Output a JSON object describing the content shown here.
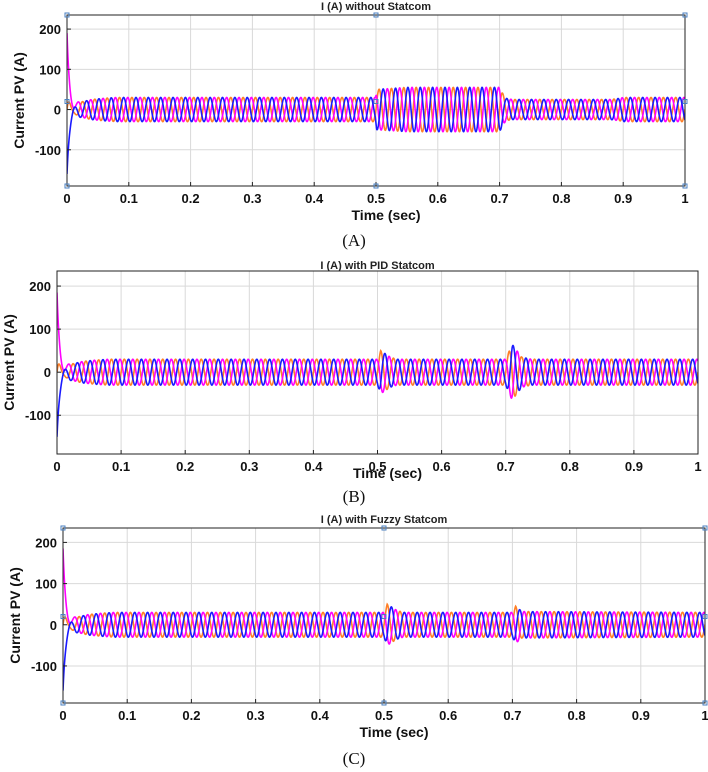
{
  "figure": {
    "colors": {
      "phase_a": "#ff7f27",
      "phase_b": "#ff00ff",
      "phase_c": "#1a1aff",
      "grid": "#d9d9d9",
      "marker": "#4a7fc0"
    },
    "icons": [
      "square-marker-icon"
    ]
  },
  "chart_data": [
    {
      "type": "line",
      "title": "I (A) without Statcom",
      "xlabel": "Time (sec)",
      "ylabel": "Current PV (A)",
      "caption": "(A)",
      "xlim": [
        0,
        1
      ],
      "ylim": [
        -190,
        235
      ],
      "xticks": [
        0,
        0.1,
        0.2,
        0.3,
        0.4,
        0.5,
        0.6,
        0.7,
        0.8,
        0.9,
        1
      ],
      "xtick_labels": [
        "0",
        "0.1",
        "0.2",
        "0.3",
        "0.4",
        "0.5",
        "0.6",
        "0.7",
        "0.8",
        "0.9",
        "1"
      ],
      "yticks": [
        -100,
        0,
        100,
        200
      ],
      "ytick_labels": [
        "-100",
        "0",
        "100",
        "200"
      ],
      "grid": true,
      "frequency_hz": 50,
      "phases": [
        "phase_a",
        "phase_b",
        "phase_c"
      ],
      "envelope": {
        "t": [
          0,
          0.005,
          0.01,
          0.02,
          0.04,
          0.06,
          0.08,
          0.1,
          0.499,
          0.501,
          0.55,
          0.7,
          0.705,
          0.71,
          0.72,
          0.88,
          0.895,
          0.9,
          1.0
        ],
        "amplitude": [
          0,
          8,
          12,
          18,
          25,
          28,
          30,
          30,
          30,
          50,
          55,
          55,
          40,
          28,
          25,
          25,
          28,
          30,
          30
        ]
      },
      "transient_peak": {
        "t": 0.0,
        "value": 210
      },
      "transient_min": {
        "t": 0.0,
        "value": -180
      },
      "end_markers": [
        0,
        0.5,
        1
      ]
    },
    {
      "type": "line",
      "title": "I (A) with PID Statcom",
      "xlabel": "Time (sec)",
      "ylabel": "Current PV (A)",
      "caption": "(B)",
      "xlim": [
        0,
        1
      ],
      "ylim": [
        -190,
        235
      ],
      "xticks": [
        0,
        0.1,
        0.2,
        0.3,
        0.4,
        0.5,
        0.6,
        0.7,
        0.8,
        0.9,
        1
      ],
      "xtick_labels": [
        "0",
        "0.1",
        "0.2",
        "0.3",
        "0.4",
        "0.5",
        "0.6",
        "0.7",
        "0.8",
        "0.9",
        "1"
      ],
      "yticks": [
        -100,
        0,
        100,
        200
      ],
      "ytick_labels": [
        "-100",
        "0",
        "100",
        "200"
      ],
      "grid": true,
      "frequency_hz": 50,
      "phases": [
        "phase_a",
        "phase_b",
        "phase_c"
      ],
      "envelope": {
        "t": [
          0,
          0.005,
          0.01,
          0.02,
          0.04,
          0.06,
          0.08,
          0.1,
          0.5,
          0.505,
          0.52,
          0.53,
          0.7,
          0.71,
          0.725,
          0.74,
          1.0
        ],
        "amplitude": [
          0,
          8,
          12,
          18,
          25,
          28,
          30,
          30,
          30,
          50,
          35,
          30,
          30,
          65,
          35,
          30,
          30
        ]
      },
      "transient_peak": {
        "t": 0.0,
        "value": 205
      },
      "transient_min": {
        "t": 0.0,
        "value": -170
      },
      "end_markers": []
    },
    {
      "type": "line",
      "title": "I (A) with Fuzzy Statcom",
      "xlabel": "Time (sec)",
      "ylabel": "Current PV (A)",
      "caption": "(C)",
      "xlim": [
        0,
        1
      ],
      "ylim": [
        -190,
        235
      ],
      "xticks": [
        0,
        0.1,
        0.2,
        0.3,
        0.4,
        0.5,
        0.6,
        0.7,
        0.8,
        0.9,
        1
      ],
      "xtick_labels": [
        "0",
        "0.1",
        "0.2",
        "0.3",
        "0.4",
        "0.5",
        "0.6",
        "0.7",
        "0.8",
        "0.9",
        "1"
      ],
      "yticks": [
        -100,
        0,
        100,
        200
      ],
      "ytick_labels": [
        "-100",
        "0",
        "100",
        "200"
      ],
      "grid": true,
      "frequency_hz": 50,
      "phases": [
        "phase_a",
        "phase_b",
        "phase_c"
      ],
      "envelope": {
        "t": [
          0,
          0.005,
          0.01,
          0.02,
          0.04,
          0.06,
          0.08,
          0.1,
          0.5,
          0.505,
          0.52,
          0.53,
          0.7,
          0.705,
          0.715,
          1.0
        ],
        "amplitude": [
          0,
          8,
          12,
          18,
          25,
          28,
          30,
          30,
          30,
          50,
          35,
          30,
          30,
          45,
          32,
          30
        ]
      },
      "transient_peak": {
        "t": 0.0,
        "value": 205
      },
      "transient_min": {
        "t": 0.0,
        "value": -180
      },
      "end_markers": [
        0,
        0.5,
        1
      ]
    }
  ]
}
